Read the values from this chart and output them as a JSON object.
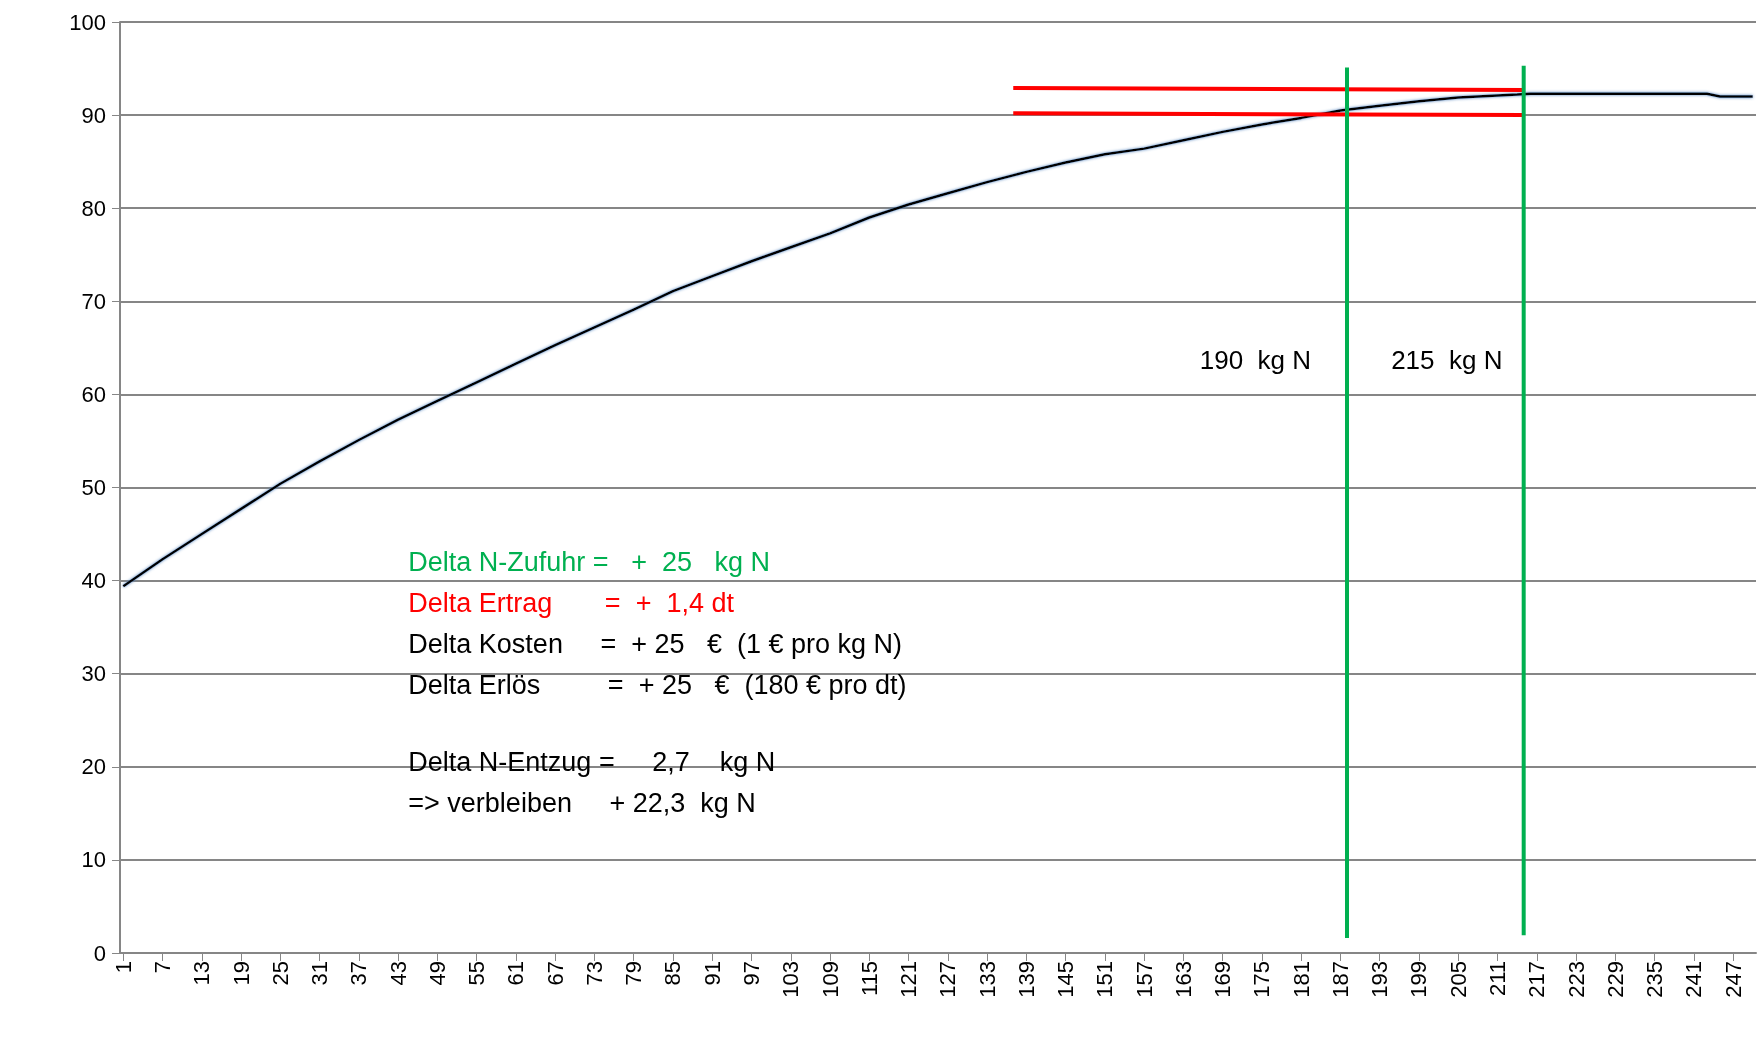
{
  "chart_data": {
    "type": "line",
    "xlim": [
      0.5,
      250.5
    ],
    "xticks": [
      1,
      7,
      13,
      19,
      25,
      31,
      37,
      43,
      49,
      55,
      61,
      67,
      73,
      79,
      85,
      91,
      97,
      103,
      109,
      115,
      121,
      127,
      133,
      139,
      145,
      151,
      157,
      163,
      169,
      175,
      181,
      187,
      193,
      199,
      205,
      211,
      217,
      223,
      229,
      235,
      241,
      247
    ],
    "ylim": [
      0,
      100
    ],
    "yticks": [
      0,
      10,
      20,
      30,
      40,
      50,
      60,
      70,
      80,
      90,
      100
    ],
    "grid": "y",
    "series": [
      {
        "color": "#000000",
        "x": [
          1,
          7,
          13,
          19,
          25,
          31,
          37,
          43,
          49,
          55,
          61,
          67,
          73,
          79,
          85,
          91,
          97,
          103,
          109,
          115,
          121,
          127,
          133,
          139,
          145,
          151,
          157,
          163,
          169,
          175,
          181,
          187,
          193,
          199,
          205,
          211,
          214,
          216,
          243,
          245,
          250
        ],
        "values": [
          39.4,
          42.3,
          45.0,
          47.7,
          50.4,
          52.8,
          55.1,
          57.3,
          59.3,
          61.3,
          63.3,
          65.3,
          67.2,
          69.1,
          71.1,
          72.7,
          74.3,
          75.8,
          77.3,
          79.0,
          80.4,
          81.6,
          82.8,
          83.9,
          84.9,
          85.8,
          86.4,
          87.3,
          88.2,
          89.0,
          89.7,
          90.5,
          91.0,
          91.5,
          91.9,
          92.1,
          92.2,
          92.3,
          92.3,
          92.0,
          92.0
        ]
      },
      {
        "color": "#ff0000",
        "x": [
          137,
          215
        ],
        "values": [
          92.9,
          92.7
        ]
      },
      {
        "color": "#ff0000",
        "x": [
          137,
          215
        ],
        "values": [
          90.2,
          90.0
        ]
      },
      {
        "color": "#00b050",
        "x": [
          188,
          188
        ],
        "values": [
          1.6,
          95.1
        ]
      },
      {
        "color": "#00b050",
        "x": [
          215,
          215
        ],
        "values": [
          1.9,
          95.3
        ]
      }
    ],
    "annotations": [
      "190  kg N",
      "215  kg N",
      "Delta N-Zufuhr =   +  25   kg N",
      "Delta Ertrag       =  +  1,4 dt",
      "Delta Kosten     =  + 25   €  (1 € pro kg N)",
      "Delta Erlös         =  + 25   €  (180 € pro dt)",
      "Delta N-Entzug =     2,7    kg N",
      "=> verbleiben     + 22,3  kg N"
    ]
  }
}
